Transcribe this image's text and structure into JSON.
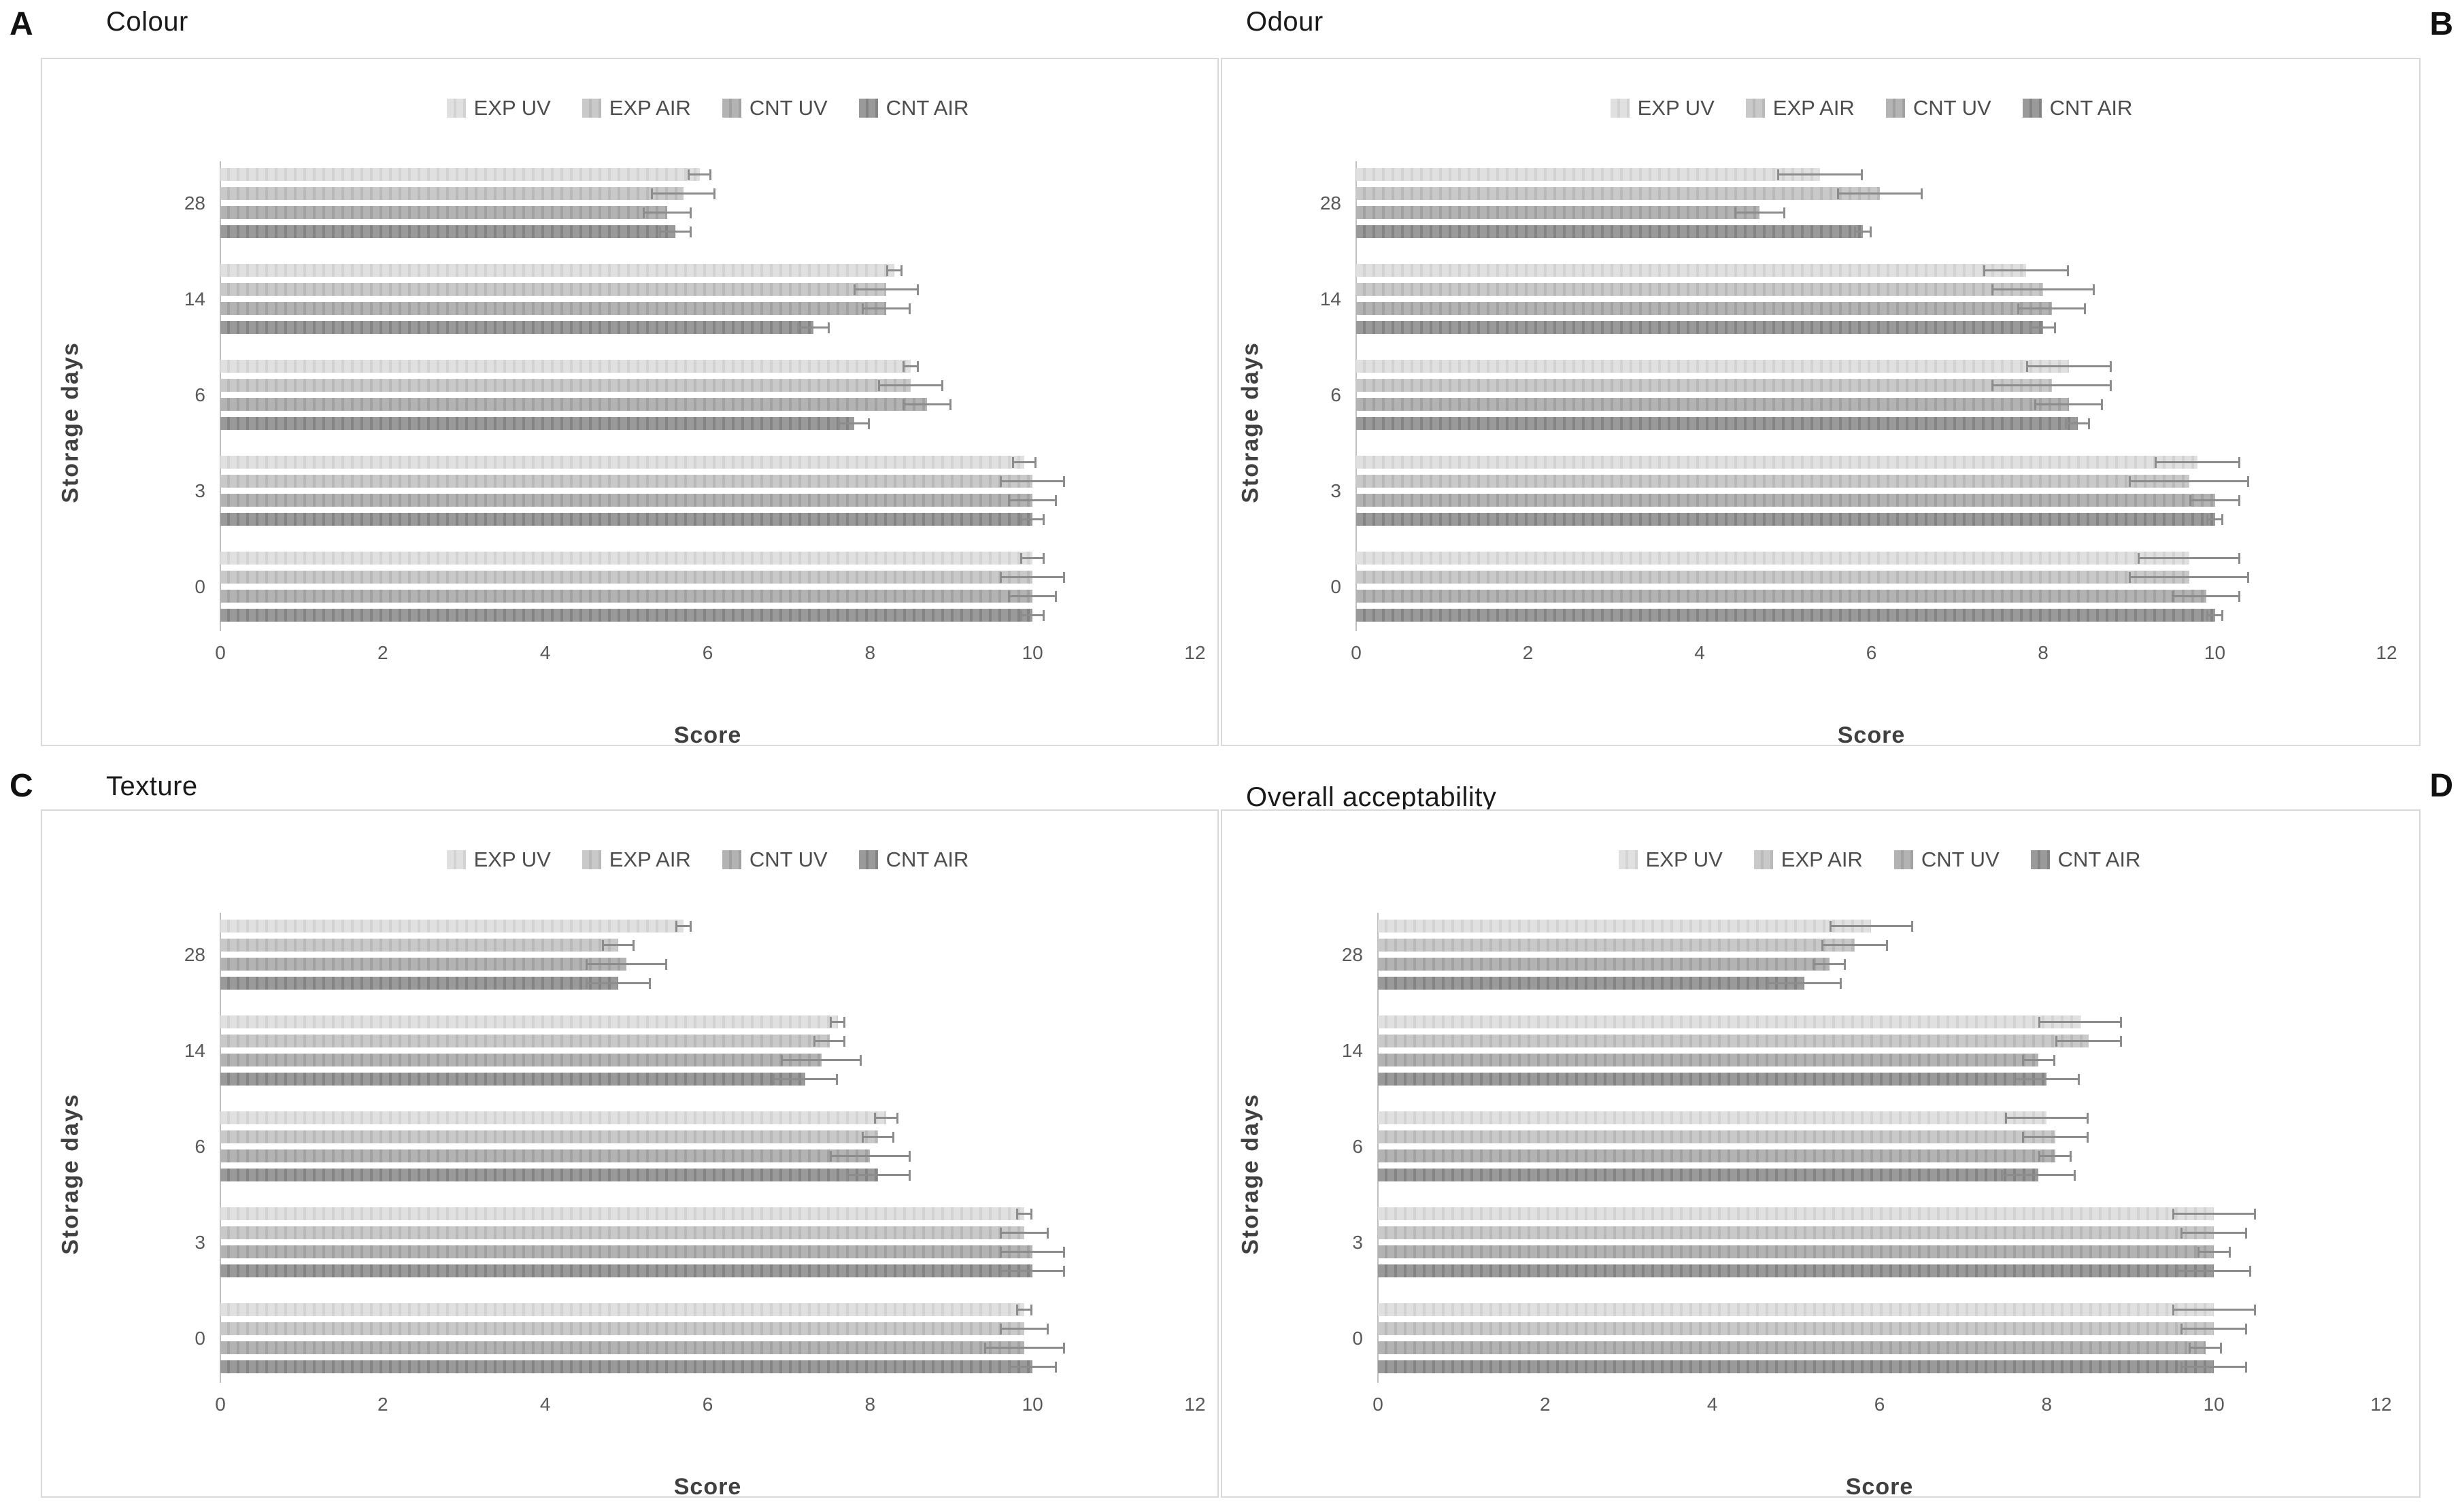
{
  "figure": {
    "panels": [
      {
        "corner_label": "A",
        "title": "Colour"
      },
      {
        "corner_label": "B",
        "title": "Odour"
      },
      {
        "corner_label": "C",
        "title": "Texture"
      },
      {
        "corner_label": "D",
        "title": "Overall acceptability"
      }
    ],
    "legend_labels": [
      "EXP UV",
      "EXP AIR",
      "CNT UV",
      "CNT AIR"
    ],
    "series_colors": {
      "EXP UV": "#e0e0e0",
      "EXP AIR": "#c9c9c9",
      "CNT UV": "#b3b3b3",
      "CNT AIR": "#9a9a9a"
    },
    "error_bar_color": "#8c8c8c",
    "box_border_color": "#d9d9d9",
    "category_display_order_top_to_bottom": [
      "28",
      "14",
      "6",
      "3",
      "0"
    ]
  },
  "chart_data": [
    {
      "type": "bar",
      "orientation": "horizontal",
      "panel": "A",
      "title": "Colour",
      "xlabel": "Score",
      "ylabel": "Storage days",
      "xlim": [
        0,
        12
      ],
      "xticks": [
        0,
        2,
        4,
        6,
        8,
        10,
        12
      ],
      "categories": [
        "0",
        "3",
        "6",
        "14",
        "28"
      ],
      "series": [
        {
          "name": "EXP UV",
          "values": [
            10.0,
            9.9,
            8.5,
            8.3,
            5.9
          ],
          "errors": [
            0.15,
            0.15,
            0.1,
            0.1,
            0.15
          ]
        },
        {
          "name": "EXP AIR",
          "values": [
            10.0,
            10.0,
            8.5,
            8.2,
            5.7
          ],
          "errors": [
            0.4,
            0.4,
            0.4,
            0.4,
            0.4
          ]
        },
        {
          "name": "CNT UV",
          "values": [
            10.0,
            10.0,
            8.7,
            8.2,
            5.5
          ],
          "errors": [
            0.3,
            0.3,
            0.3,
            0.3,
            0.3
          ]
        },
        {
          "name": "CNT AIR",
          "values": [
            10.0,
            10.0,
            7.8,
            7.3,
            5.6
          ],
          "errors": [
            0.15,
            0.15,
            0.2,
            0.2,
            0.2
          ]
        }
      ]
    },
    {
      "type": "bar",
      "orientation": "horizontal",
      "panel": "B",
      "title": "Odour",
      "xlabel": "Score",
      "ylabel": "Storage days",
      "xlim": [
        0,
        12
      ],
      "xticks": [
        0,
        2,
        4,
        6,
        8,
        10,
        12
      ],
      "categories": [
        "0",
        "3",
        "6",
        "14",
        "28"
      ],
      "series": [
        {
          "name": "EXP UV",
          "values": [
            9.7,
            9.8,
            8.3,
            7.8,
            5.4
          ],
          "errors": [
            0.6,
            0.5,
            0.5,
            0.5,
            0.5
          ]
        },
        {
          "name": "EXP AIR",
          "values": [
            9.7,
            9.7,
            8.1,
            8.0,
            6.1
          ],
          "errors": [
            0.7,
            0.7,
            0.7,
            0.6,
            0.5
          ]
        },
        {
          "name": "CNT UV",
          "values": [
            9.9,
            10.0,
            8.3,
            8.1,
            4.7
          ],
          "errors": [
            0.4,
            0.3,
            0.4,
            0.4,
            0.3
          ]
        },
        {
          "name": "CNT AIR",
          "values": [
            10.0,
            10.0,
            8.4,
            8.0,
            5.9
          ],
          "errors": [
            0.1,
            0.1,
            0.15,
            0.15,
            0.1
          ]
        }
      ]
    },
    {
      "type": "bar",
      "orientation": "horizontal",
      "panel": "C",
      "title": "Texture",
      "xlabel": "Score",
      "ylabel": "Storage days",
      "xlim": [
        0,
        12
      ],
      "xticks": [
        0,
        2,
        4,
        6,
        8,
        10,
        12
      ],
      "categories": [
        "0",
        "3",
        "6",
        "14",
        "28"
      ],
      "series": [
        {
          "name": "EXP UV",
          "values": [
            9.9,
            9.9,
            8.2,
            7.6,
            5.7
          ],
          "errors": [
            0.1,
            0.1,
            0.15,
            0.1,
            0.1
          ]
        },
        {
          "name": "EXP AIR",
          "values": [
            9.9,
            9.9,
            8.1,
            7.5,
            4.9
          ],
          "errors": [
            0.3,
            0.3,
            0.2,
            0.2,
            0.2
          ]
        },
        {
          "name": "CNT UV",
          "values": [
            9.9,
            10.0,
            8.0,
            7.4,
            5.0
          ],
          "errors": [
            0.5,
            0.4,
            0.5,
            0.5,
            0.5
          ]
        },
        {
          "name": "CNT AIR",
          "values": [
            10.0,
            10.0,
            8.1,
            7.2,
            4.9
          ],
          "errors": [
            0.3,
            0.4,
            0.4,
            0.4,
            0.4
          ]
        }
      ]
    },
    {
      "type": "bar",
      "orientation": "horizontal",
      "panel": "D",
      "title": "Overall acceptability",
      "xlabel": "Score",
      "ylabel": "Storage days",
      "xlim": [
        0,
        12
      ],
      "xticks": [
        0,
        2,
        4,
        6,
        8,
        10,
        12
      ],
      "categories": [
        "0",
        "3",
        "6",
        "14",
        "28"
      ],
      "series": [
        {
          "name": "EXP UV",
          "values": [
            10.0,
            10.0,
            8.0,
            8.4,
            5.9
          ],
          "errors": [
            0.5,
            0.5,
            0.5,
            0.5,
            0.5
          ]
        },
        {
          "name": "EXP AIR",
          "values": [
            10.0,
            10.0,
            8.1,
            8.5,
            5.7
          ],
          "errors": [
            0.4,
            0.4,
            0.4,
            0.4,
            0.4
          ]
        },
        {
          "name": "CNT UV",
          "values": [
            9.9,
            10.0,
            8.1,
            7.9,
            5.4
          ],
          "errors": [
            0.2,
            0.2,
            0.2,
            0.2,
            0.2
          ]
        },
        {
          "name": "CNT AIR",
          "values": [
            10.0,
            10.0,
            7.9,
            8.0,
            5.1
          ],
          "errors": [
            0.4,
            0.45,
            0.45,
            0.4,
            0.45
          ]
        }
      ]
    }
  ]
}
